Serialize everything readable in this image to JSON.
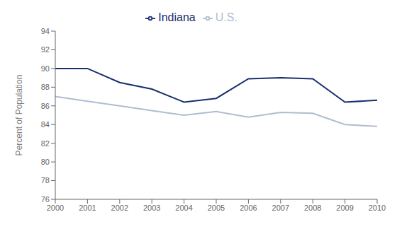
{
  "chart_data": {
    "type": "line",
    "ylabel": "Percent of Population",
    "x": [
      2000,
      2001,
      2002,
      2003,
      2004,
      2005,
      2006,
      2007,
      2008,
      2009,
      2010
    ],
    "series": [
      {
        "name": "U.S.",
        "color": "#b0bcd0",
        "values": [
          87.0,
          86.5,
          86.0,
          85.5,
          85.0,
          85.4,
          84.8,
          85.3,
          85.2,
          84.0,
          83.8
        ]
      },
      {
        "name": "Indiana",
        "color": "#1a2e6e",
        "values": [
          90.0,
          90.0,
          88.5,
          87.8,
          86.4,
          86.8,
          88.9,
          89.0,
          88.9,
          86.4,
          86.6
        ]
      }
    ],
    "xlim": [
      2000,
      2010
    ],
    "xticks": [
      2000,
      2001,
      2002,
      2003,
      2004,
      2005,
      2006,
      2007,
      2008,
      2009,
      2010
    ],
    "ylim": [
      76,
      94
    ],
    "yticks": [
      76,
      78,
      80,
      82,
      84,
      86,
      88,
      90,
      92,
      94
    ],
    "grid": false,
    "legend": "top"
  }
}
